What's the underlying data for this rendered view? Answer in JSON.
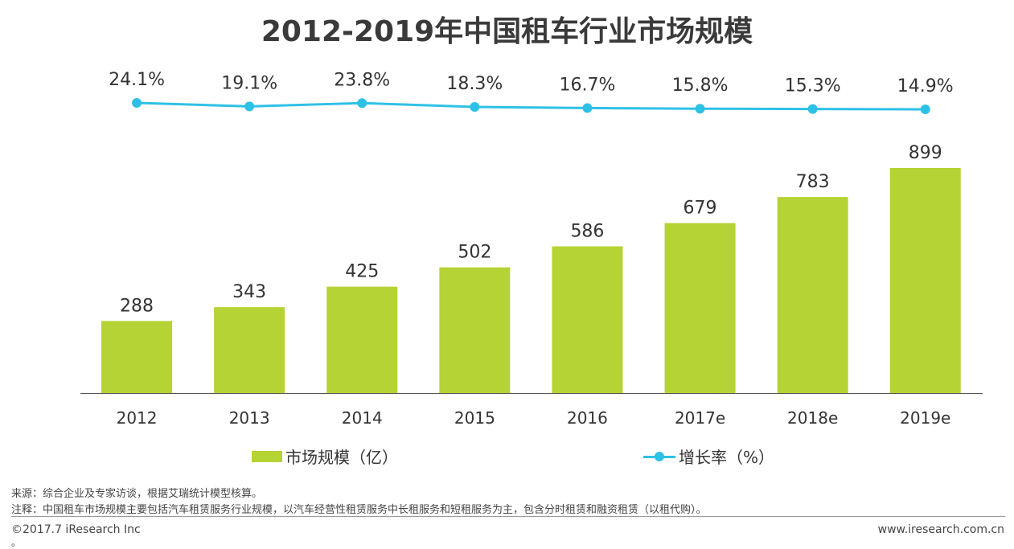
{
  "header": {
    "title": "2012-2019年中国租车行业市场规模"
  },
  "chart_data": {
    "type": "bar",
    "categories": [
      "2012",
      "2013",
      "2014",
      "2015",
      "2016",
      "2017e",
      "2018e",
      "2019e"
    ],
    "series": [
      {
        "name": "市场规模（亿）",
        "type": "bar",
        "values": [
          288,
          343,
          425,
          502,
          586,
          679,
          783,
          899
        ],
        "labels": [
          "288",
          "343",
          "425",
          "502",
          "586",
          "679",
          "783",
          "899"
        ]
      },
      {
        "name": "增长率（%）",
        "type": "line",
        "values": [
          24.1,
          19.1,
          23.8,
          18.3,
          16.7,
          15.8,
          15.3,
          14.9
        ],
        "labels": [
          "24.1%",
          "19.1%",
          "23.8%",
          "18.3%",
          "16.7%",
          "15.8%",
          "15.3%",
          "14.9%"
        ]
      }
    ],
    "title": "2012-2019年中国租车行业市场规模",
    "xlabel": "",
    "ylabel": "",
    "legend_position": "bottom",
    "grid": false,
    "colors": {
      "bar": "#b5d334",
      "line": "#2ec1e6"
    }
  },
  "legend": {
    "bar_label": "市场规模（亿）",
    "line_label": "增长率（%）"
  },
  "footer": {
    "source": "来源：综合企业及专家访谈，根据艾瑞统计模型核算。",
    "note": "注释：中国租车市场规模主要包括汽车租赁服务行业规模，以汽车经营性租赁服务中长租服务和短租服务为主，包含分时租赁和融资租赁（以租代购）。",
    "copyright": "©2017.7 iResearch Inc",
    "dot": "。",
    "website": "www.iresearch.com.cn"
  }
}
